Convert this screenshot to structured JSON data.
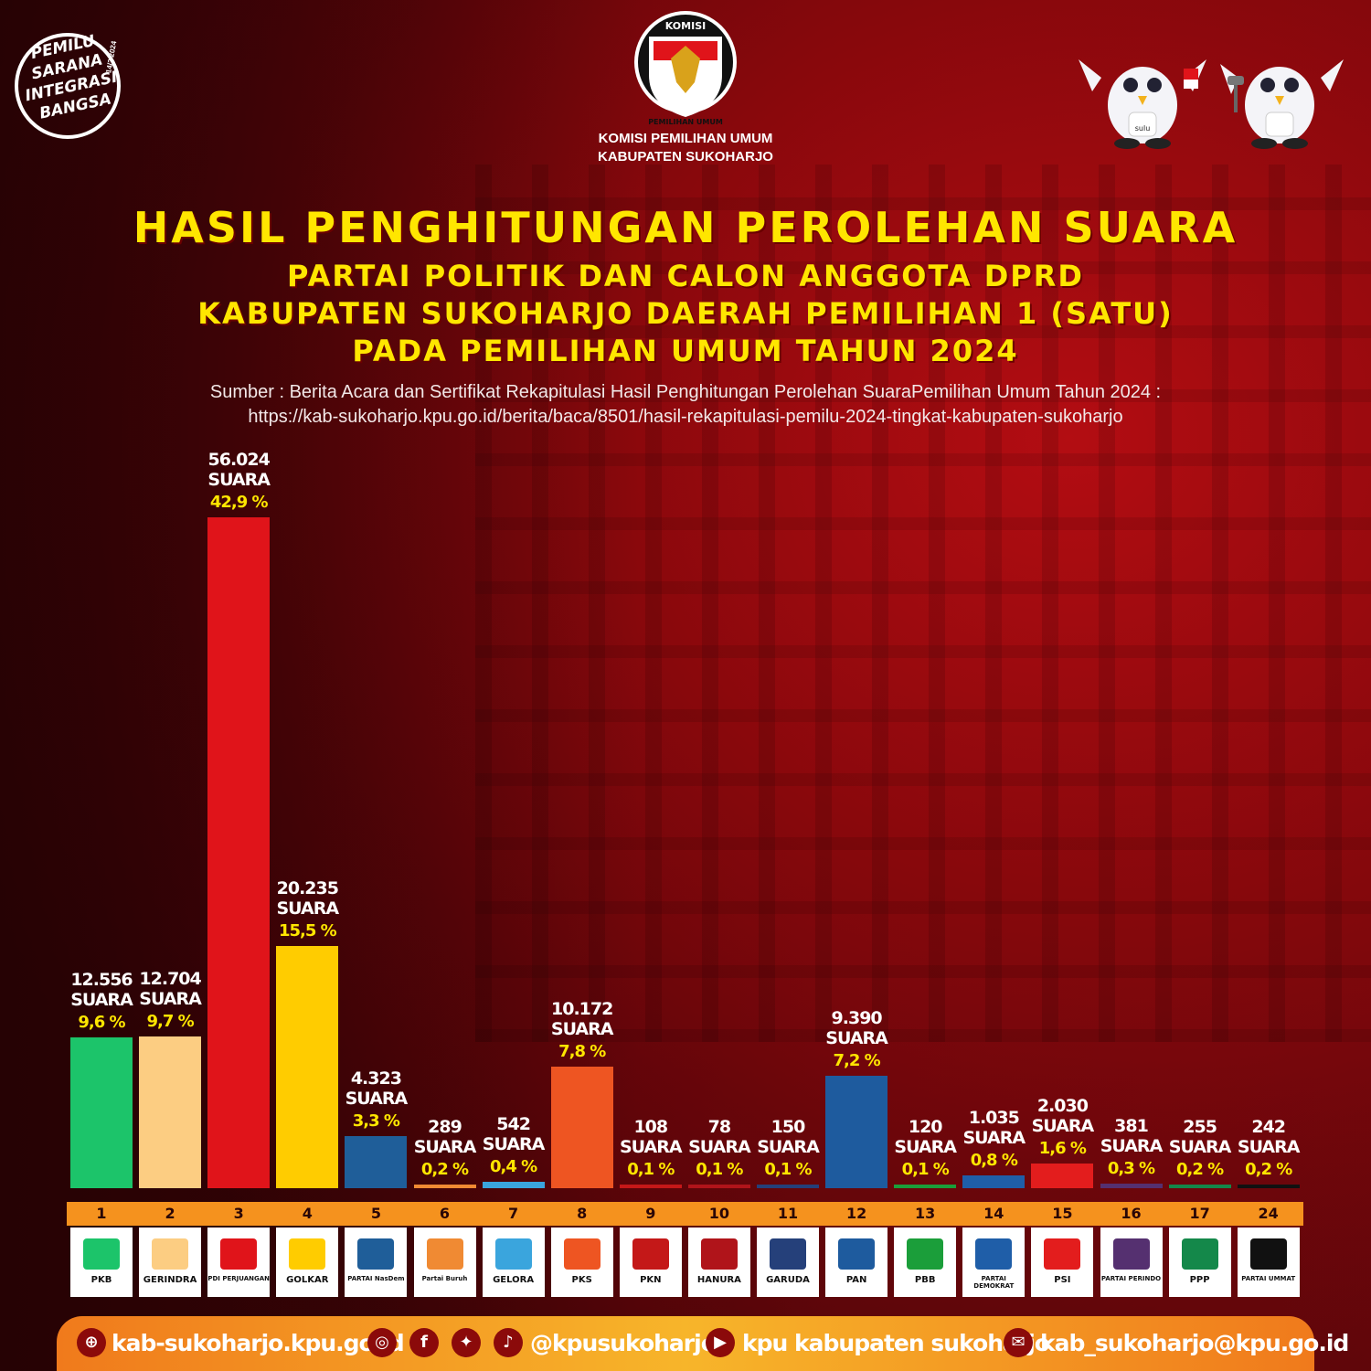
{
  "header": {
    "badge_lines": [
      "PEMILU",
      "SARANA",
      "INTEGRASI",
      "BANGSA"
    ],
    "badge_date": "14/2 2024",
    "emblem_top": "KOMISI",
    "emblem_bottom": "PEMILIHAN UMUM",
    "org_line1": "KOMISI PEMILIHAN UMUM",
    "org_line2": "KABUPATEN SUKOHARJO",
    "mascot_label": "sulu"
  },
  "title": {
    "line1": "HASIL PENGHITUNGAN PEROLEHAN SUARA",
    "line2": "PARTAI POLITIK DAN CALON ANGGOTA DPRD",
    "line3": "KABUPATEN SUKOHARJO DAERAH PEMILIHAN 1 (SATU)",
    "line4": "PADA PEMILIHAN UMUM TAHUN 2024"
  },
  "source": {
    "line1": "Sumber : Berita Acara dan Sertifikat Rekapitulasi Hasil Penghitungan Perolehan SuaraPemilihan Umum Tahun 2024 :",
    "line2": "https://kab-sukoharjo.kpu.go.id/berita/baca/8501/hasil-rekapitulasi-pemilu-2024-tingkat-kabupaten-sukoharjo"
  },
  "chart_data": {
    "type": "bar",
    "unit_label": "SUARA",
    "categories": [
      "1",
      "2",
      "3",
      "4",
      "5",
      "6",
      "7",
      "8",
      "9",
      "10",
      "11",
      "12",
      "13",
      "14",
      "15",
      "16",
      "17",
      "24"
    ],
    "values": [
      12556,
      12704,
      56024,
      20235,
      4323,
      289,
      542,
      10172,
      108,
      78,
      150,
      9390,
      120,
      1035,
      2030,
      381,
      255,
      242
    ],
    "value_labels": [
      "12.556",
      "12.704",
      "56.024",
      "20.235",
      "4.323",
      "289",
      "542",
      "10.172",
      "108",
      "78",
      "150",
      "9.390",
      "120",
      "1.035",
      "2.030",
      "381",
      "255",
      "242"
    ],
    "percent_labels": [
      "9,6 %",
      "9,7 %",
      "42,9 %",
      "15,5 %",
      "3,3 %",
      "0,2 %",
      "0,4 %",
      "7,8 %",
      "0,1 %",
      "0,1 %",
      "0,1 %",
      "7,2 %",
      "0,1 %",
      "0,8 %",
      "1,6 %",
      "0,3 %",
      "0,2 %",
      "0,2 %"
    ],
    "party_names": [
      "PKB",
      "GERINDRA",
      "PDI PERJUANGAN",
      "GOLKAR",
      "PARTAI NasDem",
      "Partai Buruh",
      "GELORA",
      "PKS",
      "PKN",
      "HANURA",
      "GARUDA",
      "PAN",
      "PBB",
      "PARTAI DEMOKRAT",
      "PSI",
      "PARTAI PERINDO",
      "PPP",
      "PARTAI UMMAT"
    ],
    "colors": [
      "#1cc46a",
      "#fccd82",
      "#e0141a",
      "#ffcc00",
      "#1f5e99",
      "#f08a33",
      "#3aa5dd",
      "#ee5522",
      "#c41818",
      "#b0141a",
      "#25407a",
      "#1e5b9e",
      "#1b9e3a",
      "#1f5ea8",
      "#e31d1d",
      "#553070",
      "#14884a",
      "#111111"
    ],
    "ylim": [
      0,
      56024
    ]
  },
  "footer": {
    "website": "kab-sukoharjo.kpu.go.id",
    "social": "@kpusukoharjo",
    "youtube": "kpu kabupaten sukoharjo",
    "email": "kab_sukoharjo@kpu.go.id"
  }
}
